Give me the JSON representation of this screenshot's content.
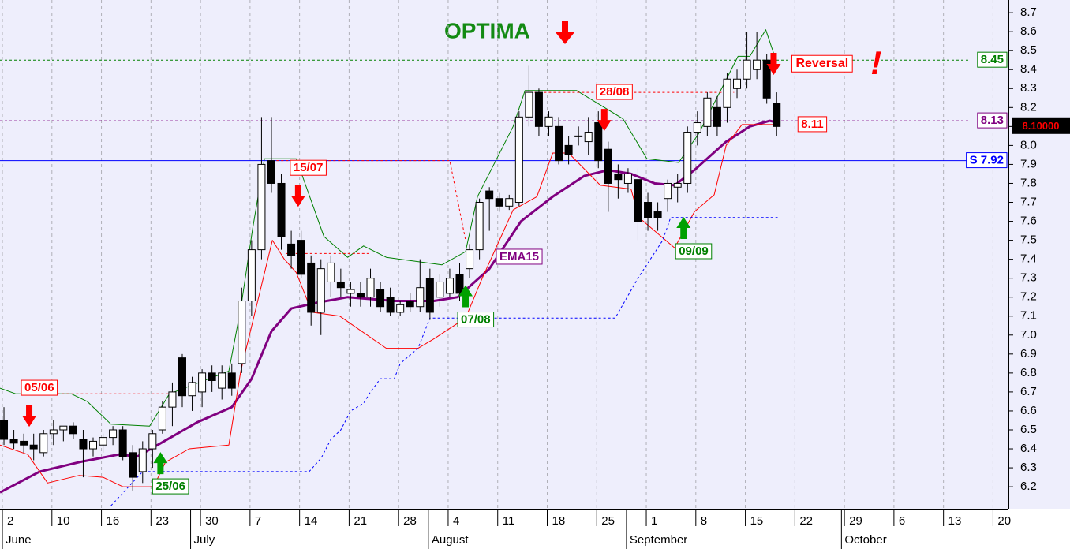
{
  "chart_data": {
    "type": "candlestick",
    "title": "OPTIMA",
    "title_color": "#138a13",
    "up_color": "#ffffff",
    "down_color": "#000000",
    "grid": true,
    "xlim": [
      -0.4,
      101.4
    ],
    "ylim": [
      6.084,
      8.767
    ],
    "yticks": [
      6.2,
      6.3,
      6.4,
      6.5,
      6.6,
      6.7,
      6.8,
      6.9,
      {
        "value": 7.0,
        "label": "7.0"
      },
      7.1,
      7.2,
      7.3,
      7.4,
      7.5,
      7.6,
      7.7,
      7.8,
      7.9,
      {
        "value": 8.0,
        "label": "8.0"
      },
      8.1,
      8.2,
      8.3,
      8.4,
      8.5,
      8.6,
      8.7
    ],
    "xticks": [
      {
        "value": 0,
        "label": "2"
      },
      {
        "value": 5,
        "label": "10"
      },
      {
        "value": 10,
        "label": "16"
      },
      {
        "value": 15,
        "label": "23"
      },
      {
        "value": 20,
        "label": "30"
      },
      {
        "value": 25,
        "label": "7"
      },
      {
        "value": 30,
        "label": "14"
      },
      {
        "value": 35,
        "label": "21"
      },
      {
        "value": 40,
        "label": "28"
      },
      {
        "value": 45,
        "label": "4"
      },
      {
        "value": 50,
        "label": "11"
      },
      {
        "value": 55,
        "label": "18"
      },
      {
        "value": 60,
        "label": "25"
      },
      {
        "value": 65,
        "label": "1"
      },
      {
        "value": 70,
        "label": "8"
      },
      {
        "value": 75,
        "label": "15"
      },
      {
        "value": 80,
        "label": "22"
      },
      {
        "value": 85,
        "label": "29"
      },
      {
        "value": 90,
        "label": "6"
      },
      {
        "value": 95,
        "label": "13"
      },
      {
        "value": 100,
        "label": "20"
      }
    ],
    "months": [
      {
        "value": 0,
        "label": "June"
      },
      {
        "value": 19,
        "label": "July"
      },
      {
        "value": 43,
        "label": "August"
      },
      {
        "value": 63,
        "label": "September"
      },
      {
        "value": 84.7,
        "label": "October"
      }
    ],
    "x": [
      0,
      1,
      2,
      3,
      4,
      5,
      6,
      7,
      8,
      9,
      10,
      11,
      12,
      13,
      14,
      15,
      16,
      17,
      18,
      19,
      20,
      21,
      22,
      23,
      24,
      25,
      26,
      27,
      28,
      29,
      30,
      31,
      32,
      33,
      34,
      35,
      36,
      37,
      38,
      39,
      40,
      41,
      42,
      43,
      44,
      45,
      46,
      47,
      48,
      49,
      50,
      51,
      52,
      53,
      54,
      55,
      56,
      57,
      58,
      59,
      60,
      61,
      62,
      63,
      64,
      65,
      66,
      67,
      68,
      69,
      70,
      71,
      72,
      73,
      74,
      75,
      76,
      77,
      78
    ],
    "ohlc": [
      [
        6.55,
        6.62,
        6.42,
        6.45
      ],
      [
        6.45,
        6.5,
        6.4,
        6.43
      ],
      [
        6.44,
        6.48,
        6.38,
        6.42
      ],
      [
        6.42,
        6.48,
        6.34,
        6.4
      ],
      [
        6.38,
        6.5,
        6.36,
        6.48
      ],
      [
        6.48,
        6.55,
        6.42,
        6.5
      ],
      [
        6.5,
        6.52,
        6.44,
        6.52
      ],
      [
        6.52,
        6.54,
        6.45,
        6.48
      ],
      [
        6.45,
        6.5,
        6.25,
        6.4
      ],
      [
        6.4,
        6.46,
        6.36,
        6.44
      ],
      [
        6.42,
        6.48,
        6.38,
        6.46
      ],
      [
        6.46,
        6.52,
        6.42,
        6.5
      ],
      [
        6.5,
        6.52,
        6.34,
        6.36
      ],
      [
        6.38,
        6.42,
        6.18,
        6.25
      ],
      [
        6.28,
        6.44,
        6.22,
        6.4
      ],
      [
        6.4,
        6.5,
        6.3,
        6.48
      ],
      [
        6.5,
        6.65,
        6.48,
        6.62
      ],
      [
        6.62,
        6.75,
        6.52,
        6.7
      ],
      [
        6.88,
        6.9,
        6.62,
        6.68
      ],
      [
        6.68,
        6.78,
        6.6,
        6.75
      ],
      [
        6.7,
        6.82,
        6.62,
        6.8
      ],
      [
        6.8,
        6.84,
        6.7,
        6.76
      ],
      [
        6.72,
        6.84,
        6.66,
        6.8
      ],
      [
        6.8,
        6.85,
        6.68,
        6.72
      ],
      [
        6.85,
        7.25,
        6.8,
        7.18
      ],
      [
        7.18,
        7.5,
        7.1,
        7.45
      ],
      [
        7.45,
        8.15,
        7.4,
        7.9
      ],
      [
        7.92,
        8.15,
        7.75,
        7.8
      ],
      [
        7.8,
        7.85,
        7.45,
        7.52
      ],
      [
        7.48,
        7.55,
        7.35,
        7.42
      ],
      [
        7.5,
        7.55,
        7.3,
        7.32
      ],
      [
        7.38,
        7.42,
        7.05,
        7.12
      ],
      [
        7.12,
        7.4,
        7.0,
        7.35
      ],
      [
        7.28,
        7.42,
        7.2,
        7.38
      ],
      [
        7.28,
        7.35,
        7.2,
        7.25
      ],
      [
        7.22,
        7.28,
        7.15,
        7.24
      ],
      [
        7.22,
        7.28,
        7.15,
        7.2
      ],
      [
        7.2,
        7.35,
        7.15,
        7.3
      ],
      [
        7.24,
        7.28,
        7.12,
        7.15
      ],
      [
        7.2,
        7.25,
        7.1,
        7.12
      ],
      [
        7.12,
        7.18,
        7.1,
        7.16
      ],
      [
        7.18,
        7.22,
        7.12,
        7.15
      ],
      [
        7.15,
        7.4,
        7.12,
        7.25
      ],
      [
        7.3,
        7.35,
        7.08,
        7.12
      ],
      [
        7.2,
        7.32,
        7.15,
        7.28
      ],
      [
        7.22,
        7.35,
        7.2,
        7.3
      ],
      [
        7.32,
        7.38,
        7.18,
        7.22
      ],
      [
        7.35,
        7.48,
        7.3,
        7.45
      ],
      [
        7.45,
        7.72,
        7.4,
        7.7
      ],
      [
        7.76,
        7.78,
        7.55,
        7.72
      ],
      [
        7.72,
        7.75,
        7.65,
        7.68
      ],
      [
        7.68,
        7.74,
        7.66,
        7.72
      ],
      [
        7.7,
        8.18,
        7.68,
        8.15
      ],
      [
        8.15,
        8.42,
        8.1,
        8.28
      ],
      [
        8.28,
        8.3,
        8.05,
        8.1
      ],
      [
        8.1,
        8.18,
        8.05,
        8.15
      ],
      [
        8.1,
        8.15,
        7.9,
        7.92
      ],
      [
        8.0,
        8.05,
        7.9,
        7.95
      ],
      [
        8.05,
        8.1,
        8.0,
        8.05
      ],
      [
        8.02,
        8.15,
        7.95,
        8.07
      ],
      [
        8.12,
        8.18,
        7.88,
        7.92
      ],
      [
        7.98,
        8.02,
        7.65,
        7.8
      ],
      [
        7.85,
        7.9,
        7.72,
        7.82
      ],
      [
        7.8,
        7.88,
        7.75,
        7.85
      ],
      [
        7.82,
        7.88,
        7.5,
        7.6
      ],
      [
        7.7,
        7.75,
        7.55,
        7.62
      ],
      [
        7.65,
        7.7,
        7.55,
        7.62
      ],
      [
        7.72,
        7.82,
        7.65,
        7.8
      ],
      [
        7.78,
        7.85,
        7.7,
        7.8
      ],
      [
        7.8,
        8.1,
        7.75,
        8.07
      ],
      [
        8.07,
        8.18,
        8.0,
        8.12
      ],
      [
        8.1,
        8.28,
        8.05,
        8.25
      ],
      [
        8.2,
        8.26,
        8.05,
        8.1
      ],
      [
        8.2,
        8.38,
        8.12,
        8.35
      ],
      [
        8.3,
        8.4,
        8.25,
        8.35
      ],
      [
        8.35,
        8.6,
        8.3,
        8.45
      ],
      [
        8.4,
        8.6,
        8.35,
        8.45
      ],
      [
        8.45,
        8.48,
        8.22,
        8.25
      ],
      [
        8.22,
        8.28,
        8.05,
        8.1
      ]
    ],
    "lines": [
      {
        "name": "EMA15",
        "color": "#800080",
        "width": 3,
        "style": "solid",
        "x": [
          -0.4,
          3.6,
          7.6,
          11.6,
          13.5,
          15.5,
          19.5,
          23,
          25,
          27,
          29,
          31.5,
          34.7,
          39.4,
          43.4,
          45.8,
          49,
          52.2,
          55.4,
          58.6,
          61,
          63.3,
          65.7,
          67.7,
          69.7,
          72.9,
          75.3,
          77.3,
          78.1
        ],
        "values": [
          6.17,
          6.28,
          6.33,
          6.37,
          6.36,
          6.42,
          6.54,
          6.62,
          6.77,
          7.02,
          7.14,
          7.17,
          7.2,
          7.18,
          7.18,
          7.2,
          7.35,
          7.6,
          7.73,
          7.84,
          7.87,
          7.85,
          7.8,
          7.79,
          7.87,
          8.02,
          8.1,
          8.13,
          8.12
        ]
      },
      {
        "color": "#008000",
        "width": 1,
        "style": "solid",
        "x": [
          -0.4,
          1.2,
          6.8,
          8.4,
          10.8,
          14.7,
          16.7,
          22.7,
          23.9,
          25.1,
          26.3,
          29.5,
          32.3,
          34.7,
          36.3,
          38.6,
          44.2,
          46.6,
          47.8,
          51.4,
          52.6,
          57.8,
          62.5,
          64.9,
          68.1,
          70.1,
          74.1,
          75.3,
          76.9,
          77.8
        ],
        "values": [
          6.72,
          6.69,
          6.69,
          6.65,
          6.53,
          6.52,
          6.69,
          6.81,
          7.14,
          7.56,
          7.93,
          7.93,
          7.52,
          7.41,
          7.47,
          7.41,
          7.37,
          7.44,
          7.73,
          8.1,
          8.29,
          8.29,
          8.14,
          7.93,
          7.91,
          8.06,
          8.47,
          8.47,
          8.61,
          8.47
        ]
      },
      {
        "color": "#ff0000",
        "width": 1,
        "style": "solid",
        "x": [
          -0.4,
          2.4,
          4.4,
          7.6,
          10,
          12,
          15.1,
          16.3,
          18.7,
          22.7,
          23.9,
          27.1,
          28.3,
          29.5,
          31.1,
          33.9,
          38.6,
          41.8,
          43.4,
          46.6,
          48.2,
          51.4,
          53.8,
          55.4,
          57,
          60.2,
          63.3,
          64.1,
          67.7,
          69.7,
          71.7,
          72.9,
          74.5,
          78.1
        ],
        "values": [
          6.42,
          6.37,
          6.22,
          6.26,
          6.25,
          6.2,
          6.2,
          6.33,
          6.4,
          6.42,
          6.81,
          7.5,
          7.4,
          7.33,
          7.12,
          7.1,
          6.93,
          6.93,
          6.98,
          7.09,
          7.29,
          7.66,
          7.73,
          7.96,
          7.96,
          7.79,
          7.77,
          7.62,
          7.46,
          7.65,
          7.74,
          8.0,
          8.11,
          8.11
        ]
      },
      {
        "color": "#0000ff",
        "width": 1,
        "style": "dotted",
        "x": [
          10.8,
          14,
          30.8,
          32,
          33,
          34,
          35,
          36.3,
          37,
          38,
          39.4,
          40,
          41.8,
          43,
          61.7,
          64,
          66.5,
          67.3,
          78.1
        ],
        "values": [
          6.1,
          6.28,
          6.28,
          6.35,
          6.45,
          6.5,
          6.6,
          6.64,
          6.7,
          6.77,
          6.77,
          6.85,
          6.93,
          7.09,
          7.09,
          7.3,
          7.5,
          7.62,
          7.62
        ]
      },
      {
        "color": "#ff0000",
        "width": 1,
        "style": "dotted",
        "x": [
          2.5,
          17
        ],
        "values": [
          6.69,
          6.69
        ]
      },
      {
        "color": "#ff0000",
        "width": 1,
        "style": "dotted",
        "x": [
          27.5,
          45,
          46.6
        ],
        "values": [
          7.92,
          7.92,
          7.5
        ]
      },
      {
        "color": "#ff0000",
        "width": 1,
        "style": "dotted",
        "x": [
          28.5,
          37
        ],
        "values": [
          7.43,
          7.43
        ]
      },
      {
        "color": "#ff0000",
        "width": 1,
        "style": "dotted",
        "x": [
          52.6,
          73.7
        ],
        "values": [
          8.28,
          8.28
        ]
      }
    ],
    "levels": [
      {
        "value": 8.45,
        "label": "8.45",
        "color": "#008000",
        "style": "dotted",
        "anchor": "axis"
      },
      {
        "value": 8.13,
        "label": "8.13",
        "color": "#800080",
        "style": "dotted",
        "anchor": "axis"
      },
      {
        "value": 7.92,
        "label": "S 7.92",
        "color": "#0000ff",
        "style": "solid",
        "anchor": "axis"
      },
      {
        "value": 8.11,
        "label": "8.11",
        "color": "#ff0000",
        "style": "none",
        "anchor": "end"
      }
    ],
    "last_price": {
      "value": 8.1,
      "label": "8.10000"
    },
    "signals": [
      {
        "label": "05/06",
        "kind": "sell",
        "x": 2.55,
        "y": 6.72
      },
      {
        "label": "25/06",
        "kind": "buy",
        "x": 15.8,
        "y": 6.2
      },
      {
        "label": "15/07",
        "kind": "sell",
        "x": 29.7,
        "y": 7.88
      },
      {
        "label": "07/08",
        "kind": "buy",
        "x": 46.6,
        "y": 7.08
      },
      {
        "label": "28/08",
        "kind": "sell",
        "x": 60.6,
        "y": 8.28
      },
      {
        "label": "09/09",
        "kind": "buy",
        "x": 68.6,
        "y": 7.44
      }
    ],
    "reversal": {
      "label": "Reversal",
      "x": 77.7,
      "y": 8.43,
      "mark": "!"
    }
  }
}
